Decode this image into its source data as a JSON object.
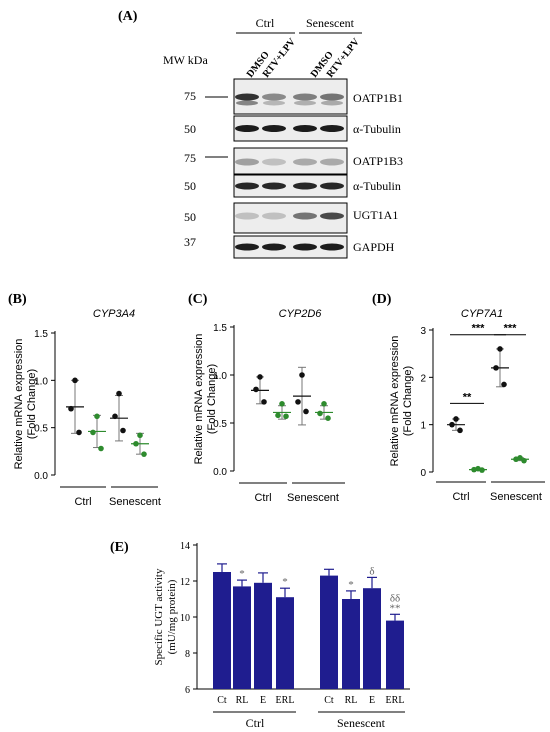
{
  "panelA": {
    "label": "(A)",
    "mw_title": "MW kDa",
    "groups": [
      "Ctrl",
      "Senescent"
    ],
    "lanes": [
      "DMSO",
      "RTV+LPV",
      "DMSO",
      "RTV+LPV"
    ],
    "blots": [
      {
        "mw": "75",
        "protein": "OATP1B1",
        "intensity": [
          0.85,
          0.45,
          0.5,
          0.55
        ]
      },
      {
        "mw": "50",
        "protein": "α-Tubulin",
        "intensity": [
          0.95,
          0.95,
          0.95,
          0.95
        ]
      },
      {
        "mw": "75",
        "protein": "OATP1B3",
        "intensity": [
          0.35,
          0.2,
          0.3,
          0.3
        ]
      },
      {
        "mw": "50",
        "protein": "α-Tubulin",
        "intensity": [
          0.9,
          0.9,
          0.9,
          0.9
        ]
      },
      {
        "mw": "50",
        "protein": "UGT1A1",
        "intensity": [
          0.2,
          0.2,
          0.55,
          0.75
        ]
      },
      {
        "mw": "37",
        "protein": "GAPDH",
        "intensity": [
          0.95,
          0.95,
          0.95,
          0.95
        ]
      }
    ]
  },
  "colors": {
    "control": "#111111",
    "treated": "#2e8b2e",
    "bar": "#1f1d8f"
  },
  "chart_data": [
    {
      "type": "scatter",
      "panel": "(B)",
      "title": "CYP3A4",
      "ylabel": "Relative mRNA expression\n(Fold Change)",
      "ylim": [
        0,
        1.5
      ],
      "yticks": [
        "0.0",
        "0.5",
        "1.0",
        "1.5"
      ],
      "groups": [
        "Ctrl",
        "Senescent"
      ],
      "series": [
        {
          "group": "Ctrl",
          "color": "control",
          "points": [
            1.0,
            0.7,
            0.45
          ],
          "mean": 0.72,
          "sd": 0.28
        },
        {
          "group": "Ctrl",
          "color": "treated",
          "points": [
            0.62,
            0.45,
            0.28
          ],
          "mean": 0.46,
          "sd": 0.17
        },
        {
          "group": "Senescent",
          "color": "control",
          "points": [
            0.86,
            0.62,
            0.47
          ],
          "mean": 0.6,
          "sd": 0.24
        },
        {
          "group": "Senescent",
          "color": "treated",
          "points": [
            0.42,
            0.33,
            0.22
          ],
          "mean": 0.33,
          "sd": 0.11
        }
      ]
    },
    {
      "type": "scatter",
      "panel": "(C)",
      "title": "CYP2D6",
      "ylabel": "Relative mRNA expression\n(Fold Change)",
      "ylim": [
        0,
        1.5
      ],
      "yticks": [
        "0.0",
        "0.5",
        "1.0",
        "1.5"
      ],
      "groups": [
        "Ctrl",
        "Senescent"
      ],
      "series": [
        {
          "group": "Ctrl",
          "color": "control",
          "points": [
            0.98,
            0.85,
            0.72
          ],
          "mean": 0.84,
          "sd": 0.14
        },
        {
          "group": "Ctrl",
          "color": "treated",
          "points": [
            0.7,
            0.58,
            0.57
          ],
          "mean": 0.61,
          "sd": 0.07
        },
        {
          "group": "Senescent",
          "color": "control",
          "points": [
            1.0,
            0.72,
            0.62
          ],
          "mean": 0.78,
          "sd": 0.3
        },
        {
          "group": "Senescent",
          "color": "treated",
          "points": [
            0.7,
            0.6,
            0.55
          ],
          "mean": 0.61,
          "sd": 0.07
        }
      ]
    },
    {
      "type": "scatter",
      "panel": "(D)",
      "title": "CYP7A1",
      "ylabel": "Relative mRNA expression\n(Fold Change)",
      "ylim": [
        0,
        3
      ],
      "yticks": [
        "0",
        "1",
        "2",
        "3"
      ],
      "groups": [
        "Ctrl",
        "Senescent"
      ],
      "series": [
        {
          "group": "Ctrl",
          "color": "control",
          "points": [
            1.12,
            1.0,
            0.88
          ],
          "mean": 1.0,
          "sd": 0.12
        },
        {
          "group": "Ctrl",
          "color": "treated",
          "points": [
            0.07,
            0.05,
            0.04
          ],
          "mean": 0.05,
          "sd": 0.02
        },
        {
          "group": "Senescent",
          "color": "control",
          "points": [
            2.6,
            2.2,
            1.85
          ],
          "mean": 2.2,
          "sd": 0.4
        },
        {
          "group": "Senescent",
          "color": "treated",
          "points": [
            0.3,
            0.27,
            0.24
          ],
          "mean": 0.27,
          "sd": 0.03
        }
      ],
      "brackets": [
        {
          "from": 0,
          "to": 1,
          "y": 1.45,
          "label": "**"
        },
        {
          "from": 0,
          "to": 2,
          "y": 2.9,
          "label": "***"
        },
        {
          "from": 2,
          "to": 3,
          "y": 2.9,
          "label": "***"
        }
      ]
    },
    {
      "type": "bar",
      "panel": "(E)",
      "ylabel": "Specific UGT activity\n(mU/mg protein)",
      "ylim": [
        6,
        14
      ],
      "yticks": [
        "6",
        "8",
        "10",
        "12",
        "14"
      ],
      "groups": [
        "Ctrl",
        "Senescent"
      ],
      "categories": [
        "Ct",
        "RL",
        "E",
        "ERL",
        "Ct",
        "RL",
        "E",
        "ERL"
      ],
      "values": [
        12.5,
        11.7,
        11.9,
        11.1,
        12.3,
        11.0,
        11.6,
        9.8
      ],
      "errors": [
        0.45,
        0.35,
        0.55,
        0.5,
        0.35,
        0.45,
        0.6,
        0.35
      ],
      "annotations": [
        "",
        "*",
        "",
        "*",
        "",
        "*",
        "δ",
        "δδ\n**"
      ]
    }
  ]
}
